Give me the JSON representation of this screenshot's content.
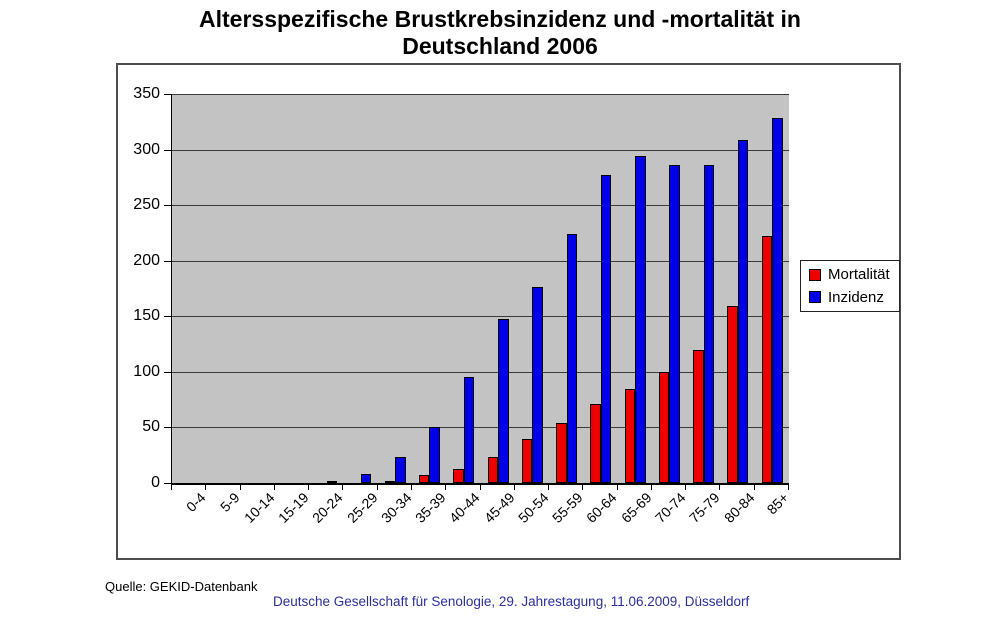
{
  "title": {
    "line1": "Altersspezifische Brustkrebsinzidenz und -mortalität in",
    "line2": "Deutschland 2006"
  },
  "chart_data": {
    "type": "bar",
    "title": "Altersspezifische Brustkrebsinzidenz und -mortalität in Deutschland 2006",
    "categories": [
      "0-4",
      "5-9",
      "10-14",
      "15-19",
      "20-24",
      "25-29",
      "30-34",
      "35-39",
      "40-44",
      "45-49",
      "50-54",
      "55-59",
      "60-64",
      "65-69",
      "70-74",
      "75-79",
      "80-84",
      "85+"
    ],
    "series": [
      {
        "name": "Mortalität",
        "key": "mortalitaet",
        "color": "#ee0000",
        "values": [
          0,
          0,
          0,
          0,
          0,
          0,
          2,
          7,
          13,
          23,
          40,
          54,
          71,
          85,
          100,
          120,
          159,
          222
        ]
      },
      {
        "name": "Inzidenz",
        "key": "inzidenz",
        "color": "#0000e8",
        "values": [
          0,
          0,
          0,
          0,
          2,
          8,
          23,
          50,
          95,
          148,
          176,
          224,
          277,
          294,
          286,
          286,
          309,
          328
        ]
      }
    ],
    "xlabel": "",
    "ylabel": "",
    "ylim": [
      0,
      350
    ],
    "ytick_step": 50,
    "grid": "horizontal",
    "legend_position": "right",
    "plot_bg": "#c3c3c3"
  },
  "footer": {
    "source": "Quelle: GEKID-Datenbank",
    "conference": "Deutsche Gesellschaft für Senologie, 29. Jahrestagung, 11.06.2009, Düsseldorf"
  }
}
